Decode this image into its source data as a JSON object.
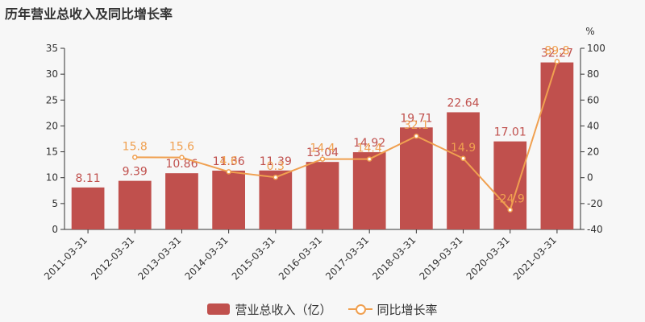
{
  "title": "历年营业总收入及同比增长率",
  "chart_data": {
    "type": "bar",
    "categories": [
      "2011-03-31",
      "2012-03-31",
      "2013-03-31",
      "2014-03-31",
      "2015-03-31",
      "2016-03-31",
      "2017-03-31",
      "2018-03-31",
      "2019-03-31",
      "2020-03-31",
      "2021-03-31"
    ],
    "series": [
      {
        "name": "营业总收入（亿）",
        "type": "bar",
        "axis": "left",
        "color": "#c0504d",
        "values": [
          8.11,
          9.39,
          10.86,
          11.36,
          11.39,
          13.04,
          14.92,
          19.71,
          22.64,
          17.01,
          32.27
        ]
      },
      {
        "name": "同比增长率",
        "type": "line",
        "axis": "right",
        "color": "#f0a050",
        "values": [
          null,
          15.8,
          15.6,
          4.6,
          0.3,
          14.4,
          14.4,
          32.1,
          14.9,
          -24.9,
          89.8
        ]
      }
    ],
    "y_left": {
      "ylim": [
        0,
        35
      ],
      "ticks": [
        0,
        5,
        10,
        15,
        20,
        25,
        30,
        35
      ]
    },
    "y_right": {
      "ylim": [
        -40,
        100
      ],
      "ticks": [
        -40,
        -20,
        0,
        20,
        40,
        60,
        80,
        100
      ],
      "unit": "%"
    },
    "legend_position": "bottom"
  },
  "legend": {
    "bar_label": "营业总收入（亿）",
    "line_label": "同比增长率"
  }
}
